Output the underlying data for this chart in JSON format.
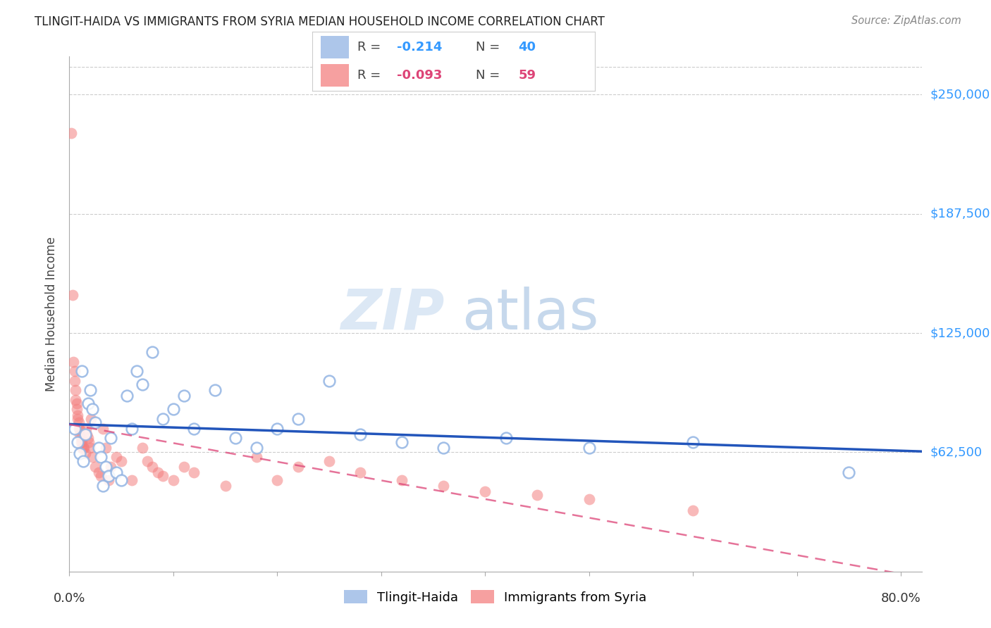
{
  "title": "TLINGIT-HAIDA VS IMMIGRANTS FROM SYRIA MEDIAN HOUSEHOLD INCOME CORRELATION CHART",
  "source": "Source: ZipAtlas.com",
  "ylabel": "Median Household Income",
  "ytick_values": [
    62500,
    125000,
    187500,
    250000
  ],
  "ylim": [
    0,
    270000
  ],
  "xlim": [
    0.0,
    0.82
  ],
  "watermark_zip": "ZIP",
  "watermark_atlas": "atlas",
  "blue_color": "#92b4e3",
  "pink_color": "#f48080",
  "blue_line_color": "#2255bb",
  "pink_line_color": "#dd4477",
  "blue_scatter_edge": "#6090cc",
  "pink_scatter_edge": "#dd6666",
  "tlingit_x": [
    0.005,
    0.008,
    0.01,
    0.012,
    0.013,
    0.015,
    0.018,
    0.02,
    0.022,
    0.025,
    0.028,
    0.03,
    0.032,
    0.035,
    0.038,
    0.04,
    0.045,
    0.05,
    0.055,
    0.06,
    0.065,
    0.07,
    0.08,
    0.09,
    0.1,
    0.11,
    0.12,
    0.14,
    0.16,
    0.18,
    0.2,
    0.22,
    0.25,
    0.28,
    0.32,
    0.36,
    0.42,
    0.5,
    0.6,
    0.75
  ],
  "tlingit_y": [
    75000,
    68000,
    62000,
    105000,
    58000,
    72000,
    88000,
    95000,
    85000,
    78000,
    65000,
    60000,
    45000,
    55000,
    50000,
    70000,
    52000,
    48000,
    92000,
    75000,
    105000,
    98000,
    115000,
    80000,
    85000,
    92000,
    75000,
    95000,
    70000,
    65000,
    75000,
    80000,
    100000,
    72000,
    68000,
    65000,
    70000,
    65000,
    68000,
    52000
  ],
  "syria_x": [
    0.002,
    0.003,
    0.004,
    0.005,
    0.005,
    0.006,
    0.006,
    0.007,
    0.007,
    0.008,
    0.008,
    0.009,
    0.009,
    0.01,
    0.01,
    0.011,
    0.011,
    0.012,
    0.012,
    0.013,
    0.014,
    0.015,
    0.016,
    0.017,
    0.018,
    0.019,
    0.02,
    0.021,
    0.022,
    0.025,
    0.028,
    0.03,
    0.032,
    0.035,
    0.038,
    0.04,
    0.045,
    0.05,
    0.06,
    0.07,
    0.075,
    0.08,
    0.085,
    0.09,
    0.1,
    0.11,
    0.12,
    0.15,
    0.18,
    0.2,
    0.22,
    0.25,
    0.28,
    0.32,
    0.36,
    0.4,
    0.45,
    0.5,
    0.6
  ],
  "syria_y": [
    230000,
    145000,
    110000,
    105000,
    100000,
    95000,
    90000,
    88000,
    85000,
    82000,
    80000,
    78000,
    75000,
    75000,
    72000,
    70000,
    68000,
    68000,
    65000,
    65000,
    65000,
    62000,
    75000,
    72000,
    70000,
    68000,
    65000,
    80000,
    60000,
    55000,
    52000,
    50000,
    75000,
    65000,
    48000,
    55000,
    60000,
    58000,
    48000,
    65000,
    58000,
    55000,
    52000,
    50000,
    48000,
    55000,
    52000,
    45000,
    60000,
    48000,
    55000,
    58000,
    52000,
    48000,
    45000,
    42000,
    40000,
    38000,
    32000
  ],
  "legend_blue_r": "-0.214",
  "legend_blue_n": "40",
  "legend_pink_r": "-0.093",
  "legend_pink_n": "59",
  "bottom_legend_1": "Tlingit-Haida",
  "bottom_legend_2": "Immigrants from Syria",
  "xtick_left_label": "0.0%",
  "xtick_right_label": "80.0%"
}
